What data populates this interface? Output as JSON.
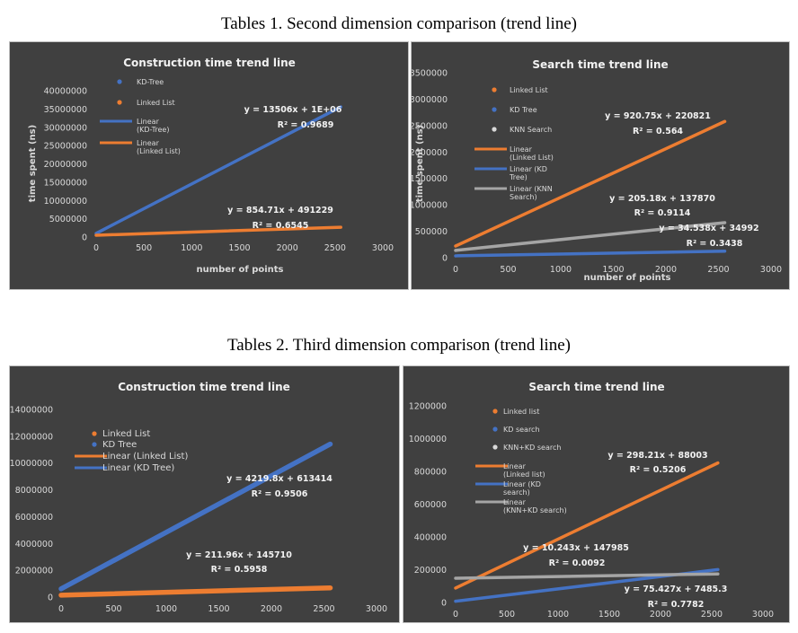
{
  "captions": {
    "table1": "Tables 1. Second dimension comparison (trend line)",
    "table2": "Tables 2. Third dimension comparison (trend line)"
  },
  "chart_data": [
    {
      "id": "c1",
      "type": "scatter",
      "title": "Construction time trend line",
      "xlabel": "number of points",
      "ylabel": "time spent (ns)",
      "xlim": [
        0,
        3000
      ],
      "ylim": [
        0,
        40000000
      ],
      "xticks": [
        "0",
        "500",
        "1000",
        "1500",
        "2000",
        "2500",
        "3000"
      ],
      "yticks": [
        "0",
        "5000000",
        "10000000",
        "15000000",
        "20000000",
        "25000000",
        "30000000",
        "35000000",
        "40000000"
      ],
      "legend": [
        "KD-Tree",
        "Linked List",
        "Linear (KD-Tree)",
        "Linear (Linked List)"
      ],
      "series": [
        {
          "name": "KD-Tree",
          "color": "#4472c4",
          "trend": {
            "slope": 13506,
            "intercept": 1000000
          },
          "x": [
            0,
            2560
          ],
          "y": [
            1000000,
            35575360
          ]
        },
        {
          "name": "Linked List",
          "color": "#ed7d31",
          "trend": {
            "slope": 854.71,
            "intercept": 491229
          },
          "x": [
            0,
            2560
          ],
          "y": [
            491229,
            2679287
          ]
        }
      ],
      "annotations": [
        {
          "eq": "y = 13506x + 1E+06",
          "r2": "R² = 0.9689"
        },
        {
          "eq": "y = 854.71x + 491229",
          "r2": "R² = 0.6545"
        }
      ]
    },
    {
      "id": "c2",
      "type": "scatter",
      "title": "Search time trend line",
      "xlabel": "number of points",
      "ylabel": "time spent (ns)",
      "xlim": [
        0,
        3000
      ],
      "ylim": [
        0,
        3500000
      ],
      "xticks": [
        "0",
        "500",
        "1000",
        "1500",
        "2000",
        "2500",
        "3000"
      ],
      "yticks": [
        "0",
        "500000",
        "1000000",
        "1500000",
        "2000000",
        "2500000",
        "3000000",
        "3500000"
      ],
      "legend": [
        "Linked List",
        "KD Tree",
        "KNN Search",
        "Linear (Linked List)",
        "Linear (KD Tree)",
        "Linear (KNN Search)"
      ],
      "series": [
        {
          "name": "Linked List",
          "color": "#ed7d31",
          "trend": {
            "slope": 920.75,
            "intercept": 220821
          },
          "x": [
            0,
            2560
          ],
          "y": [
            220821,
            2577941
          ]
        },
        {
          "name": "KD Tree",
          "color": "#4472c4",
          "trend": {
            "slope": 34.538,
            "intercept": 34992
          },
          "x": [
            0,
            2560
          ],
          "y": [
            34992,
            123409
          ]
        },
        {
          "name": "KNN Search",
          "color": "#a5a5a5",
          "trend": {
            "slope": 205.18,
            "intercept": 137870
          },
          "x": [
            0,
            2560
          ],
          "y": [
            137870,
            663131
          ]
        }
      ],
      "annotations": [
        {
          "eq": "y = 920.75x + 220821",
          "r2": "R² = 0.564"
        },
        {
          "eq": "y = 205.18x + 137870",
          "r2": "R² = 0.9114"
        },
        {
          "eq": "y = 34.538x + 34992",
          "r2": "R² = 0.3438"
        }
      ]
    },
    {
      "id": "c3",
      "type": "scatter",
      "title": "Construction time trend line",
      "xlabel": "",
      "ylabel": "",
      "xlim": [
        0,
        3000
      ],
      "ylim": [
        0,
        14000000
      ],
      "xticks": [
        "0",
        "500",
        "1000",
        "1500",
        "2000",
        "2500",
        "3000"
      ],
      "yticks": [
        "0",
        "2000000",
        "4000000",
        "6000000",
        "8000000",
        "10000000",
        "12000000",
        "14000000"
      ],
      "legend": [
        "Linked List",
        "KD Tree",
        "Linear (Linked List)",
        "Linear (KD Tree)"
      ],
      "series": [
        {
          "name": "Linked List",
          "color": "#ed7d31",
          "trend": {
            "slope": 211.96,
            "intercept": 145710
          },
          "x": [
            0,
            2560
          ],
          "y": [
            145710,
            688328
          ]
        },
        {
          "name": "KD Tree",
          "color": "#4472c4",
          "trend": {
            "slope": 4219.8,
            "intercept": 613414
          },
          "x": [
            0,
            2560
          ],
          "y": [
            613414,
            11416102
          ]
        }
      ],
      "annotations": [
        {
          "eq": "y = 4219.8x + 613414",
          "r2": "R² = 0.9506"
        },
        {
          "eq": "y = 211.96x + 145710",
          "r2": "R² = 0.5958"
        }
      ]
    },
    {
      "id": "c4",
      "type": "scatter",
      "title": "Search time trend line",
      "xlabel": "",
      "ylabel": "",
      "xlim": [
        0,
        3000
      ],
      "ylim": [
        0,
        1200000
      ],
      "xticks": [
        "0",
        "500",
        "1000",
        "1500",
        "2000",
        "2500",
        "3000"
      ],
      "yticks": [
        "0",
        "200000",
        "400000",
        "600000",
        "800000",
        "1000000",
        "1200000"
      ],
      "legend": [
        "Linked list",
        "KD search",
        "KNN+KD search",
        "Linear (Linked list)",
        "Linear (KD search)",
        "Linear (KNN+KD search)"
      ],
      "series": [
        {
          "name": "Linked list",
          "color": "#ed7d31",
          "trend": {
            "slope": 298.21,
            "intercept": 88003
          },
          "x": [
            0,
            2560
          ],
          "y": [
            88003,
            851421
          ]
        },
        {
          "name": "KD search",
          "color": "#4472c4",
          "trend": {
            "slope": 75.427,
            "intercept": 7485.3
          },
          "x": [
            0,
            2560
          ],
          "y": [
            7485,
            200578
          ]
        },
        {
          "name": "KNN+KD search",
          "color": "#a5a5a5",
          "trend": {
            "slope": 10.243,
            "intercept": 147985
          },
          "x": [
            0,
            2560
          ],
          "y": [
            147985,
            174207
          ]
        }
      ],
      "annotations": [
        {
          "eq": "y = 298.21x + 88003",
          "r2": "R² = 0.5206"
        },
        {
          "eq": "y = 10.243x + 147985",
          "r2": "R² = 0.0092"
        },
        {
          "eq": "y = 75.427x + 7485.3",
          "r2": "R² = 0.7782"
        }
      ]
    }
  ]
}
